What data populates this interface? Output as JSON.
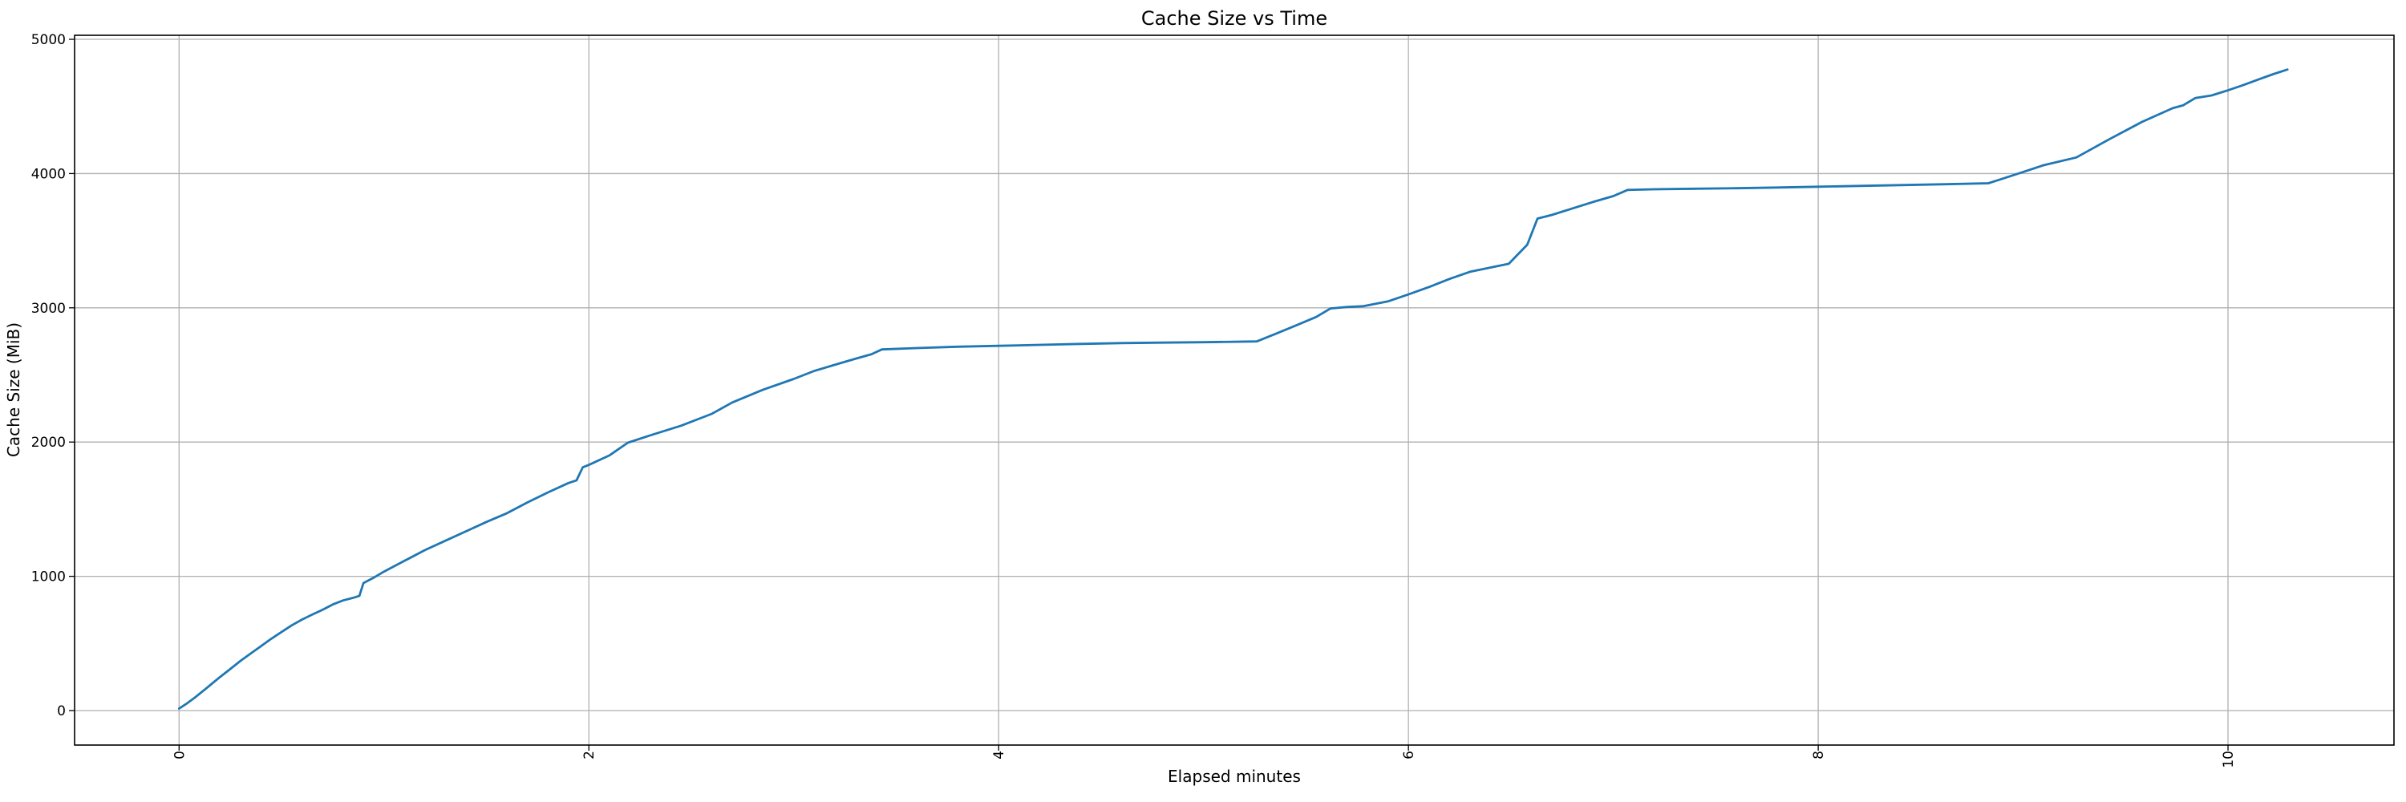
{
  "chart_data": {
    "type": "line",
    "title": "Cache Size vs Time",
    "xlabel": "Elapsed minutes",
    "ylabel": "Cache Size (MiB)",
    "x_ticks": [
      0,
      2,
      4,
      6,
      8,
      10
    ],
    "x_tick_labels": [
      "0",
      "2",
      "4",
      "6",
      "8",
      "10"
    ],
    "x_tick_rotation": 90,
    "y_ticks": [
      0,
      1000,
      2000,
      3000,
      4000,
      5000
    ],
    "y_tick_labels": [
      "0",
      "1000",
      "2000",
      "3000",
      "4000",
      "5000"
    ],
    "xlim": [
      -0.51,
      10.81
    ],
    "ylim": [
      -257,
      5030
    ],
    "grid": true,
    "legend_position": "none",
    "colors": {
      "line": "#1f77b4",
      "grid": "#b0b0b0",
      "spine": "#000000",
      "background": "#ffffff"
    },
    "series": [
      {
        "name": "cache_size",
        "color": "#1f77b4",
        "points": [
          [
            0.0,
            15
          ],
          [
            0.04,
            55
          ],
          [
            0.08,
            100
          ],
          [
            0.12,
            150
          ],
          [
            0.16,
            200
          ],
          [
            0.2,
            250
          ],
          [
            0.25,
            310
          ],
          [
            0.3,
            370
          ],
          [
            0.35,
            425
          ],
          [
            0.4,
            480
          ],
          [
            0.45,
            535
          ],
          [
            0.5,
            585
          ],
          [
            0.55,
            635
          ],
          [
            0.6,
            678
          ],
          [
            0.65,
            715
          ],
          [
            0.7,
            750
          ],
          [
            0.75,
            790
          ],
          [
            0.8,
            820
          ],
          [
            0.85,
            840
          ],
          [
            0.88,
            855
          ],
          [
            0.9,
            950
          ],
          [
            0.95,
            990
          ],
          [
            1.0,
            1035
          ],
          [
            1.1,
            1115
          ],
          [
            1.2,
            1195
          ],
          [
            1.3,
            1265
          ],
          [
            1.4,
            1335
          ],
          [
            1.5,
            1405
          ],
          [
            1.6,
            1470
          ],
          [
            1.7,
            1550
          ],
          [
            1.8,
            1625
          ],
          [
            1.9,
            1695
          ],
          [
            1.94,
            1715
          ],
          [
            1.97,
            1812
          ],
          [
            2.0,
            1830
          ],
          [
            2.1,
            1900
          ],
          [
            2.19,
            1995
          ],
          [
            2.3,
            2050
          ],
          [
            2.45,
            2122
          ],
          [
            2.6,
            2210
          ],
          [
            2.7,
            2295
          ],
          [
            2.85,
            2390
          ],
          [
            3.0,
            2470
          ],
          [
            3.1,
            2530
          ],
          [
            3.2,
            2575
          ],
          [
            3.3,
            2620
          ],
          [
            3.38,
            2655
          ],
          [
            3.43,
            2690
          ],
          [
            3.6,
            2700
          ],
          [
            3.8,
            2710
          ],
          [
            4.0,
            2717
          ],
          [
            4.2,
            2724
          ],
          [
            4.4,
            2731
          ],
          [
            4.6,
            2737
          ],
          [
            4.8,
            2741
          ],
          [
            5.0,
            2744
          ],
          [
            5.26,
            2750
          ],
          [
            5.35,
            2805
          ],
          [
            5.45,
            2868
          ],
          [
            5.55,
            2932
          ],
          [
            5.62,
            2995
          ],
          [
            5.7,
            3006
          ],
          [
            5.78,
            3012
          ],
          [
            5.9,
            3048
          ],
          [
            6.0,
            3100
          ],
          [
            6.1,
            3155
          ],
          [
            6.2,
            3215
          ],
          [
            6.3,
            3268
          ],
          [
            6.4,
            3300
          ],
          [
            6.49,
            3328
          ],
          [
            6.58,
            3470
          ],
          [
            6.63,
            3665
          ],
          [
            6.7,
            3692
          ],
          [
            6.78,
            3730
          ],
          [
            6.9,
            3788
          ],
          [
            7.0,
            3832
          ],
          [
            7.07,
            3878
          ],
          [
            7.2,
            3883
          ],
          [
            7.4,
            3887
          ],
          [
            7.6,
            3891
          ],
          [
            7.8,
            3896
          ],
          [
            8.0,
            3902
          ],
          [
            8.2,
            3908
          ],
          [
            8.4,
            3914
          ],
          [
            8.6,
            3920
          ],
          [
            8.83,
            3928
          ],
          [
            8.9,
            3962
          ],
          [
            9.0,
            4012
          ],
          [
            9.1,
            4062
          ],
          [
            9.26,
            4120
          ],
          [
            9.42,
            4255
          ],
          [
            9.58,
            4385
          ],
          [
            9.73,
            4487
          ],
          [
            9.78,
            4508
          ],
          [
            9.84,
            4562
          ],
          [
            9.92,
            4582
          ],
          [
            10.0,
            4620
          ],
          [
            10.08,
            4662
          ],
          [
            10.15,
            4702
          ],
          [
            10.22,
            4740
          ],
          [
            10.29,
            4775
          ]
        ]
      }
    ]
  }
}
